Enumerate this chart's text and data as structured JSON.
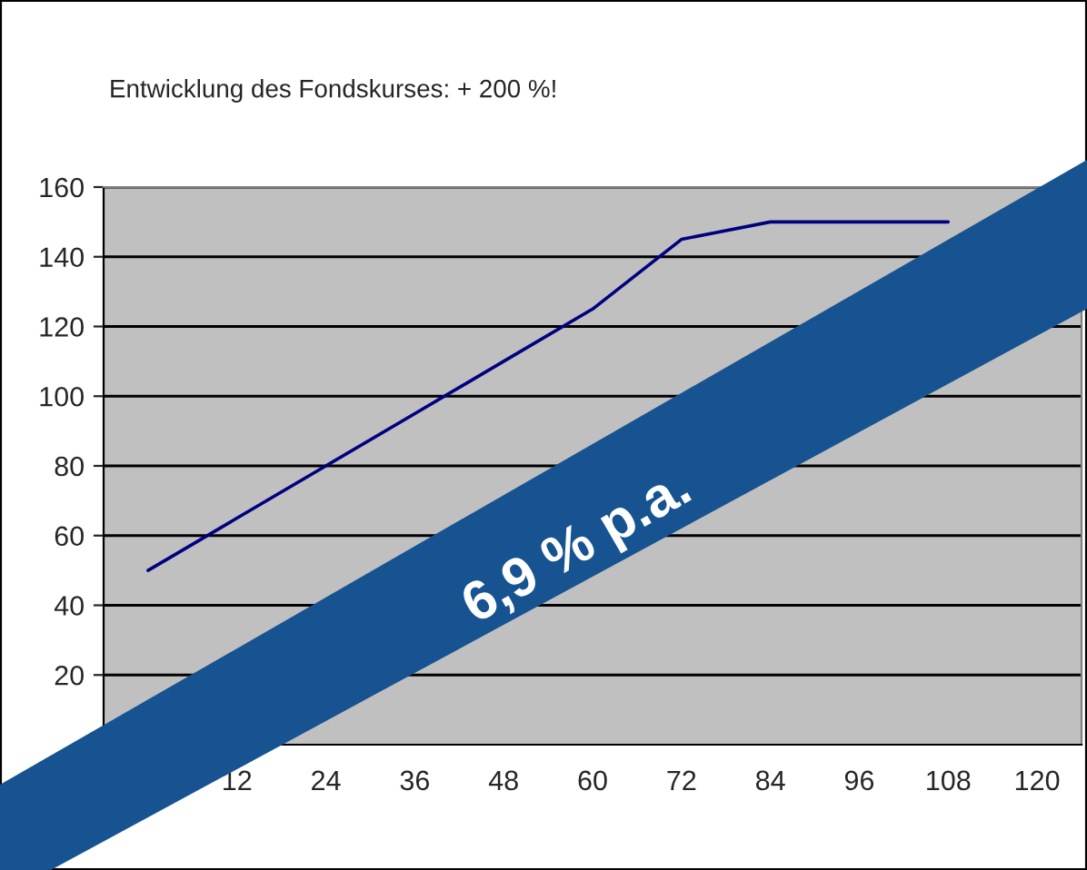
{
  "chart_data": {
    "type": "line",
    "title": "Entwicklung des Fondskurses: + 200 %!",
    "categories": [
      null,
      "12",
      "24",
      "36",
      "48",
      "60",
      "72",
      "84",
      "96",
      "108",
      "120"
    ],
    "series": [
      {
        "color": "#000080",
        "values": [
          50,
          65,
          80,
          95,
          110,
          125,
          145,
          150,
          150,
          150,
          null
        ]
      }
    ],
    "ylim": [
      0,
      160
    ],
    "yticks": [
      20,
      40,
      60,
      80,
      100,
      120,
      140,
      160
    ],
    "grid": "y",
    "marker": "none",
    "line_style": "solid",
    "annotations": [
      "6,9 % p.a."
    ]
  }
}
